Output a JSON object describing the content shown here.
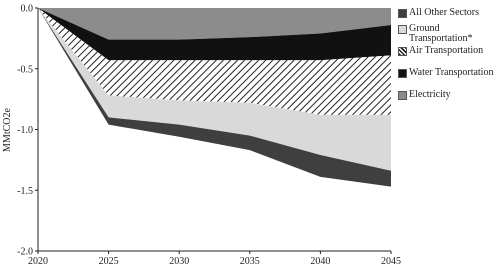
{
  "chart_data": {
    "type": "stacked-area",
    "y_label": "MMtCO2e",
    "x": [
      2020,
      2025,
      2030,
      2035,
      2040,
      2045
    ],
    "xlim": [
      2020,
      2045
    ],
    "xticks": [
      2020,
      2025,
      2030,
      2035,
      2040,
      2045
    ],
    "ylim": [
      -2.0,
      0.0
    ],
    "yticks": [
      {
        "value": 0,
        "label": "0.0"
      },
      {
        "value": -0.5,
        "label": "-0.5"
      },
      {
        "value": -1,
        "label": "-1.0"
      },
      {
        "value": -1.5,
        "label": "-1.5"
      },
      {
        "value": -2,
        "label": "-2.0"
      }
    ],
    "series": [
      {
        "name": "Electricity",
        "color": "#8c8c8c",
        "values": [
          0,
          -0.26,
          -0.26,
          -0.24,
          -0.21,
          -0.14
        ]
      },
      {
        "name": "Water Transportation",
        "color": "#111111",
        "values": [
          0,
          -0.17,
          -0.17,
          -0.19,
          -0.22,
          -0.25
        ]
      },
      {
        "name": "Air Transportation",
        "color": "hatch",
        "values": [
          0,
          -0.29,
          -0.33,
          -0.35,
          -0.45,
          -0.49
        ]
      },
      {
        "name": "Ground Transportation*",
        "color": "#d9d9d9",
        "values": [
          0,
          -0.18,
          -0.2,
          -0.27,
          -0.33,
          -0.46
        ]
      },
      {
        "name": "All Other Sectors",
        "color": "#3f3f3f",
        "values": [
          0,
          -0.06,
          -0.1,
          -0.12,
          -0.18,
          -0.13
        ]
      }
    ],
    "legend_order": [
      4,
      3,
      2,
      1,
      0
    ]
  }
}
